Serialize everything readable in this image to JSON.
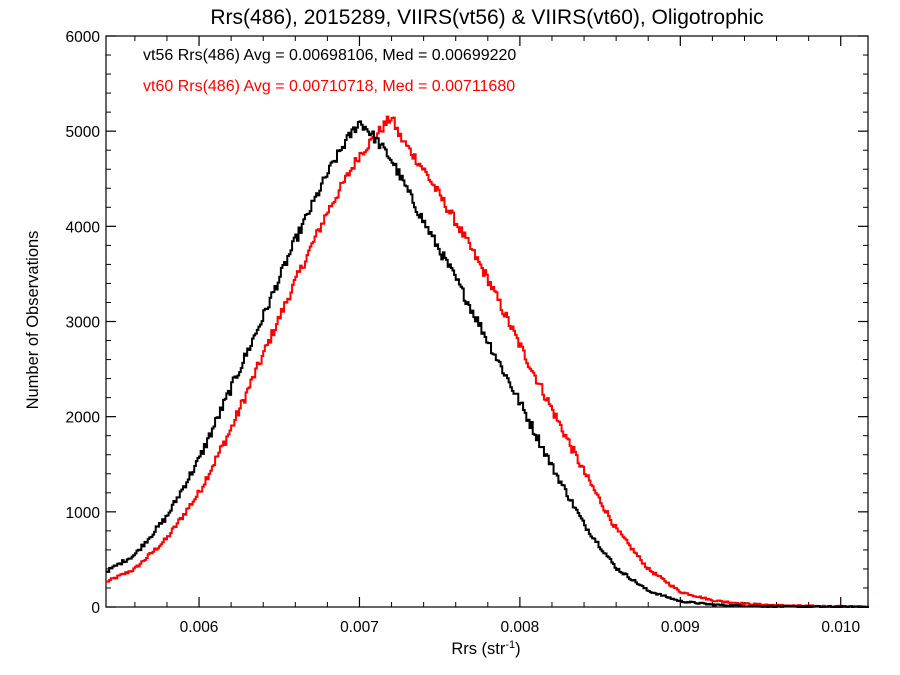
{
  "chart_data": {
    "type": "histogram",
    "title": "Rrs(486), 2015289, VIIRS(vt56) & VIIRS(vt60), Oligotrophic",
    "xlabel": "Rrs (str",
    "xlabel_sup": "-1",
    "xlabel_close": ")",
    "ylabel": "Number of Observations",
    "xlim": [
      0.00542,
      0.01017
    ],
    "ylim": [
      0,
      6000
    ],
    "xticks": [
      0.006,
      0.007,
      0.008,
      0.009,
      0.01
    ],
    "xtick_labels": [
      "0.006",
      "0.007",
      "0.008",
      "0.009",
      "0.010"
    ],
    "yticks": [
      0,
      1000,
      2000,
      3000,
      4000,
      5000,
      6000
    ],
    "ytick_labels": [
      "0",
      "1000",
      "2000",
      "3000",
      "4000",
      "5000",
      "6000"
    ],
    "grid": false,
    "series": [
      {
        "name": "vt56",
        "color": "#000000",
        "annotation": "vt56 Rrs(486) Avg = 0.00698106, Med = 0.00699220",
        "x": [
          0.00542,
          0.0056,
          0.0058,
          0.006,
          0.0062,
          0.0064,
          0.0066,
          0.0068,
          0.0069,
          0.007,
          0.00705,
          0.0071,
          0.0072,
          0.0074,
          0.0076,
          0.0078,
          0.008,
          0.0082,
          0.0084,
          0.0086,
          0.0088,
          0.009,
          0.0092,
          0.0094,
          0.0096,
          0.01,
          0.01017
        ],
        "y": [
          370,
          550,
          950,
          1550,
          2300,
          3050,
          3850,
          4550,
          4850,
          5100,
          5020,
          4920,
          4700,
          4050,
          3450,
          2800,
          2150,
          1480,
          870,
          410,
          170,
          60,
          25,
          12,
          5,
          2,
          1
        ]
      },
      {
        "name": "vt60",
        "color": "#ff0000",
        "annotation": "vt60 Rrs(486) Avg = 0.00710718, Med = 0.00711680",
        "x": [
          0.00542,
          0.0056,
          0.0058,
          0.006,
          0.0062,
          0.0064,
          0.0066,
          0.0068,
          0.007,
          0.0071,
          0.0072,
          0.00725,
          0.0074,
          0.0076,
          0.0078,
          0.008,
          0.0082,
          0.0084,
          0.0086,
          0.0088,
          0.009,
          0.0092,
          0.0094,
          0.0096,
          0.0098,
          0.01,
          0.01017
        ],
        "y": [
          260,
          400,
          720,
          1200,
          1870,
          2650,
          3420,
          4150,
          4750,
          4950,
          5150,
          4950,
          4600,
          4050,
          3450,
          2750,
          2080,
          1420,
          820,
          400,
          160,
          70,
          35,
          18,
          10,
          5,
          3
        ]
      }
    ]
  }
}
